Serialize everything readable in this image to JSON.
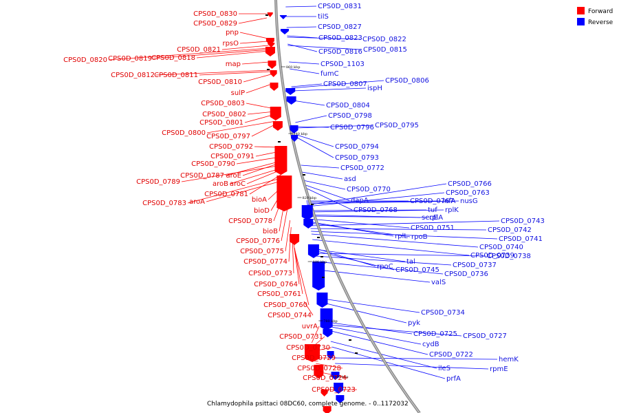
{
  "caption": "Chlamydophila psittaci 08DC60, complete genome. - 0..1172032",
  "legend": {
    "forward": {
      "label": "Forward",
      "color": "#ff0000"
    },
    "reverse": {
      "label": "Reverse",
      "color": "#0000ff"
    }
  },
  "ticks": [
    "860 kbp",
    "840 kbp",
    "820 kbp",
    "800 kbp",
    "780 kbp",
    "760 kbp"
  ],
  "forward_labels": [
    "CPS0D_0830",
    "CPS0D_0829",
    "pnp",
    "rpsO",
    "CPS0D_0821",
    "CPS0D_0820",
    "CPS0D_0819",
    "CPS0D_0818",
    "map",
    "CPS0D_0812",
    "CPS0D_0811",
    "CPS0D_0810",
    "sulP",
    "CPS0D_0803",
    "CPS0D_0802",
    "CPS0D_0801",
    "CPS0D_0800",
    "CPS0D_0797",
    "CPS0D_0792",
    "CPS0D_0791",
    "CPS0D_0790",
    "CPS0D_0787",
    "aroE",
    "CPS0D_0789",
    "aroB",
    "aroC",
    "CPS0D_0781",
    "CPS0D_0783",
    "aroA",
    "bioA",
    "bioD",
    "CPS0D_0778",
    "bioB",
    "CPS0D_0776",
    "CPS0D_0775",
    "CPS0D_0774",
    "CPS0D_0773",
    "CPS0D_0764",
    "CPS0D_0761",
    "CPS0D_0760",
    "CPS0D_0744",
    "uvrA",
    "CPS0D_0731",
    "CPS0D_0730",
    "CPS0D_0729",
    "CPS0D_0728",
    "CPS0D_0724",
    "CPS0D_0723"
  ],
  "reverse_labels": [
    "CPS0D_0831",
    "tilS",
    "CPS0D_0827",
    "CPS0D_0823",
    "CPS0D_0822",
    "CPS0D_0816",
    "CPS0D_0815",
    "CPS0D_1103",
    "fumC",
    "CPS0D_0807",
    "CPS0D_0806",
    "ispH",
    "CPS0D_0804",
    "CPS0D_0798",
    "CPS0D_0796",
    "CPS0D_0795",
    "CPS0D_0794",
    "CPS0D_0793",
    "CPS0D_0772",
    "asd",
    "CPS0D_0770",
    "dapA",
    "CPS0D_0768",
    "CPS0D_0767",
    "infA",
    "nusG",
    "CPS0D_0766",
    "CPS0D_0763",
    "tuf",
    "rplK",
    "secE",
    "rplA",
    "CPS0D_0751",
    "rplL",
    "rpoB",
    "CPS0D_0743",
    "CPS0D_0742",
    "CPS0D_0741",
    "CPS0D_0740",
    "CPS0D_0739",
    "rpoC",
    "tal",
    "CPS0D_0745",
    "CPS0D_0738",
    "CPS0D_0737",
    "CPS0D_0736",
    "valS",
    "CPS0D_0734",
    "pyk",
    "CPS0D_0725",
    "CPS0D_0727",
    "cydB",
    "CPS0D_0722",
    "ileS",
    "prfA",
    "hemK",
    "rpmE"
  ]
}
